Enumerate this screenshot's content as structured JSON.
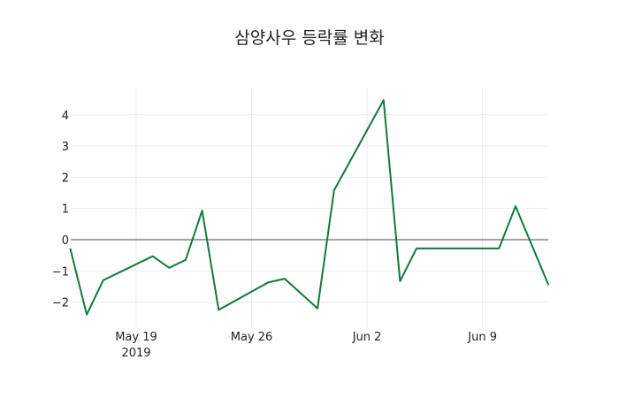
{
  "chart_data": {
    "type": "line",
    "title": "삼양사우 등락률 변화",
    "xlabel": "",
    "ylabel": "",
    "x": [
      "2019-05-15",
      "2019-05-16",
      "2019-05-17",
      "2019-05-20",
      "2019-05-21",
      "2019-05-22",
      "2019-05-23",
      "2019-05-24",
      "2019-05-27",
      "2019-05-28",
      "2019-05-30",
      "2019-05-31",
      "2019-06-03",
      "2019-06-04",
      "2019-06-05",
      "2019-06-10",
      "2019-06-11",
      "2019-06-13"
    ],
    "series": [
      {
        "name": "등락률",
        "color": "#117a3c",
        "values": [
          -0.28,
          -2.4,
          -1.3,
          -0.53,
          -0.9,
          -0.65,
          0.93,
          -2.25,
          -1.37,
          -1.25,
          -2.2,
          1.58,
          4.47,
          -1.33,
          -0.28,
          -0.28,
          1.07,
          -1.45
        ]
      }
    ],
    "ylim": [
      -2.6,
      4.9
    ],
    "yticks": [
      4,
      3,
      2,
      1,
      0,
      -1,
      -2
    ],
    "ytick_labels": [
      "4",
      "3",
      "2",
      "1",
      "0",
      "−1",
      "−2"
    ],
    "xticks": [
      "2019-05-19",
      "2019-05-26",
      "2019-06-02",
      "2019-06-09"
    ],
    "xtick_labels": [
      "May 19",
      "May 26",
      "Jun 2",
      "Jun 9"
    ],
    "xtick_sublabel": "2019",
    "grid": true,
    "zero_line": true,
    "legend": "none"
  }
}
